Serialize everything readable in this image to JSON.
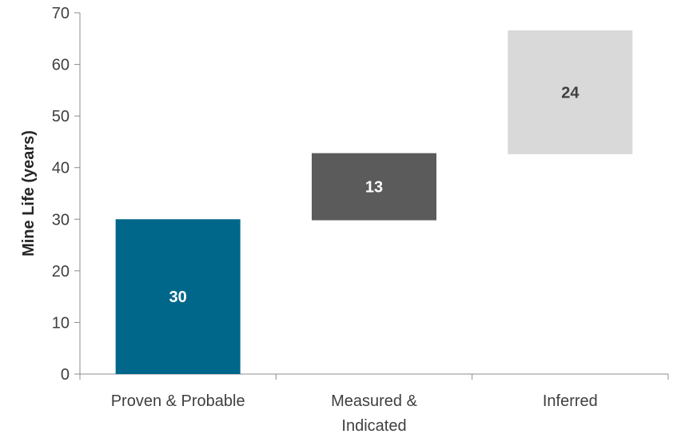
{
  "chart_data": {
    "type": "bar",
    "subtype": "waterfall",
    "title": "",
    "xlabel": "",
    "ylabel": "Mine Life (years)",
    "ylim": [
      0,
      70
    ],
    "yticks": [
      0,
      10,
      20,
      30,
      40,
      50,
      60,
      70
    ],
    "grid": false,
    "legend": "none",
    "categories": [
      [
        "Proven & Probable"
      ],
      [
        "Measured &",
        "Indicated"
      ],
      [
        "Inferred"
      ]
    ],
    "values": [
      30,
      13,
      24
    ],
    "bases": [
      0,
      29.8,
      42.6
    ],
    "labels": [
      "30",
      "13",
      "24"
    ],
    "colors": [
      "#00678a",
      "#5b5b5b",
      "#d9d9d9"
    ],
    "label_colors": [
      "#ffffff",
      "#ffffff",
      "#404040"
    ]
  }
}
